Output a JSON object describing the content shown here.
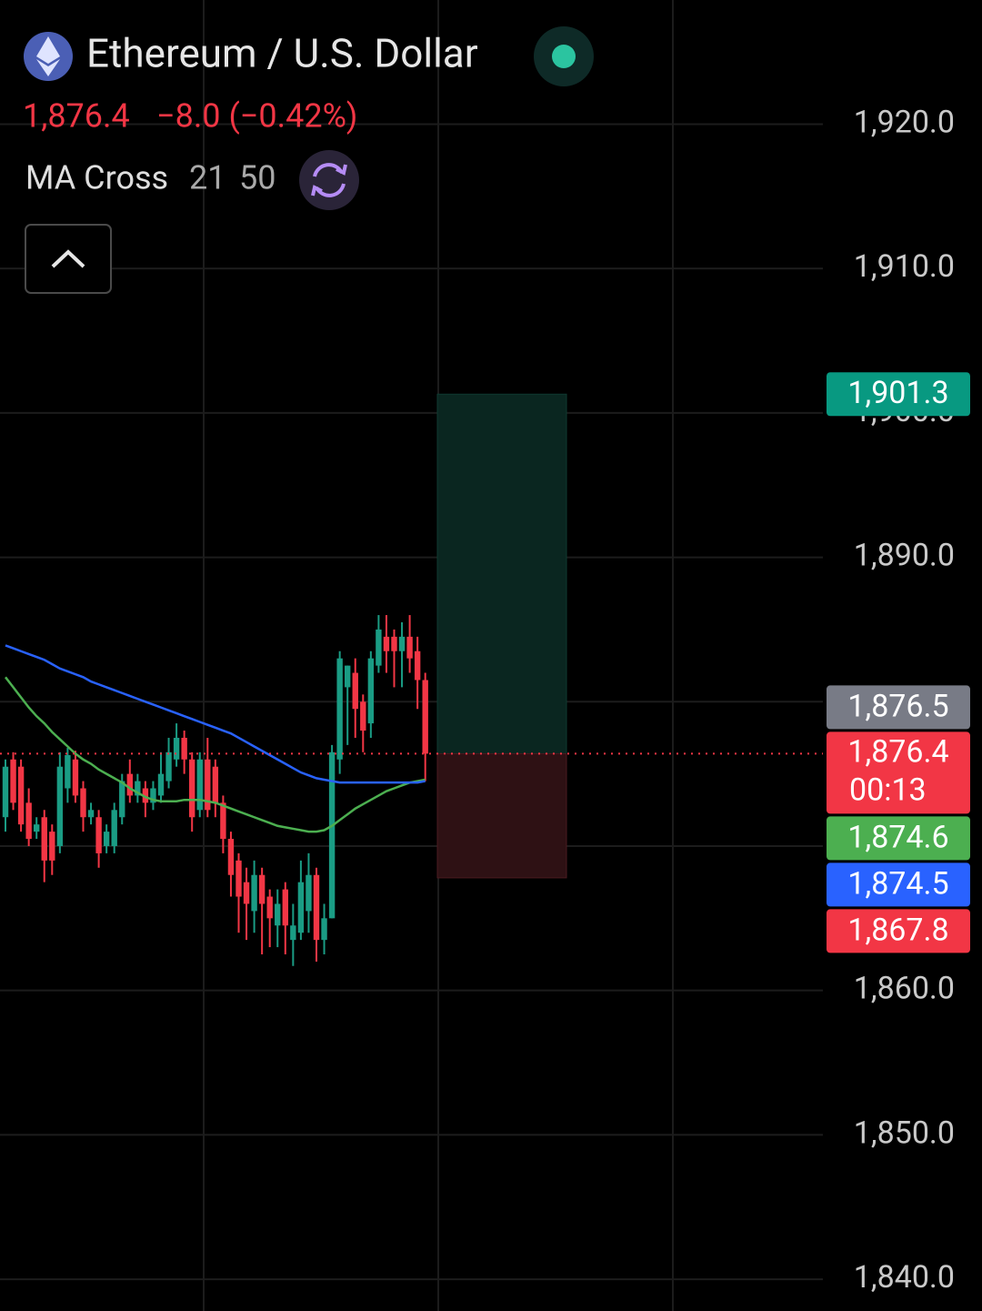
{
  "header": {
    "title": "Ethereum / U.S. Dollar",
    "price": "1,876.4",
    "change": "−8.0 (−0.42%)",
    "indicator": {
      "name": "MA Cross",
      "params": [
        "21",
        "50"
      ]
    }
  },
  "chart_data": {
    "type": "candlestick",
    "up_color": "#1a9c84",
    "down_color": "#f23645",
    "open": [
      1872,
      1876,
      1875.5,
      1873,
      1871,
      1872,
      1871,
      1870,
      1874,
      1876,
      1874,
      1872,
      1872,
      1870,
      1870,
      1872,
      1875,
      1873.5,
      1874,
      1873,
      1873.5,
      1874.5,
      1876,
      1877.5,
      1876,
      1872.5,
      1876,
      1875.5,
      1873,
      1870.5,
      1869,
      1867.5,
      1865.5,
      1868,
      1866.5,
      1864.5,
      1867,
      1863.5,
      1864,
      1865.5,
      1868,
      1863.5,
      1865,
      1876,
      1881,
      1882,
      1880,
      1878.5,
      1882.5,
      1884.5,
      1884.5,
      1883.5,
      1884.5,
      1883.5,
      1881.5
    ],
    "high": [
      1876,
      1876.5,
      1876,
      1874,
      1872,
      1872.5,
      1871.5,
      1876.5,
      1876.8,
      1876.6,
      1874.5,
      1873,
      1872.5,
      1871.5,
      1873,
      1875,
      1876,
      1875,
      1874.5,
      1874.5,
      1876.5,
      1877.5,
      1878.5,
      1878,
      1876.5,
      1876.5,
      1877.5,
      1876,
      1873.5,
      1871,
      1869.5,
      1868.5,
      1869,
      1868.5,
      1867,
      1867,
      1867.5,
      1866,
      1869,
      1869.5,
      1868.5,
      1866,
      1877,
      1883.5,
      1882.5,
      1883,
      1880.5,
      1883.5,
      1886,
      1886,
      1885,
      1885.5,
      1886,
      1884.5,
      1882
    ],
    "low": [
      1871,
      1872.5,
      1871,
      1870,
      1870.5,
      1867.5,
      1868,
      1869.5,
      1873,
      1873,
      1871,
      1871.5,
      1868.5,
      1869.5,
      1869.5,
      1871.5,
      1873,
      1873,
      1872,
      1872.5,
      1873,
      1874,
      1875.5,
      1875,
      1871,
      1872,
      1872,
      1872,
      1869.5,
      1866.5,
      1864,
      1863.5,
      1864,
      1862.5,
      1863,
      1863,
      1862.5,
      1861.7,
      1863.5,
      1864,
      1862,
      1862.5,
      1865,
      1875,
      1877,
      1877.5,
      1876.5,
      1877.5,
      1882,
      1882,
      1881,
      1881,
      1882,
      1879.5,
      1874.5
    ],
    "close": [
      1875.5,
      1873,
      1871.5,
      1870.5,
      1871.5,
      1869,
      1869,
      1875.5,
      1876.3,
      1873.5,
      1872,
      1872.5,
      1869.5,
      1871,
      1872.5,
      1874.5,
      1873.5,
      1874.5,
      1873,
      1874,
      1875,
      1876.5,
      1877.5,
      1876,
      1872,
      1876,
      1872.5,
      1873,
      1870.5,
      1868,
      1866.5,
      1866,
      1868,
      1866,
      1865,
      1866,
      1864.5,
      1864.5,
      1867.5,
      1868,
      1863.5,
      1865,
      1876.5,
      1883,
      1882.5,
      1879.5,
      1878,
      1883,
      1885,
      1883.5,
      1883.5,
      1884.5,
      1883,
      1881.5,
      1876.4
    ],
    "moving_averages": [
      {
        "period": "21",
        "color": "#4caf50",
        "values": [
          1881.7,
          1881.0,
          1880.3,
          1879.6,
          1879.0,
          1878.5,
          1877.9,
          1877.4,
          1876.9,
          1876.4,
          1876.0,
          1875.7,
          1875.3,
          1875.0,
          1874.7,
          1874.4,
          1874.0,
          1873.7,
          1873.4,
          1873.2,
          1873.1,
          1873.1,
          1873.1,
          1873.2,
          1873.2,
          1873.2,
          1873.1,
          1873.0,
          1872.8,
          1872.6,
          1872.4,
          1872.2,
          1872.0,
          1871.8,
          1871.6,
          1871.4,
          1871.3,
          1871.2,
          1871.1,
          1871.0,
          1871.0,
          1871.1,
          1871.4,
          1871.8,
          1872.2,
          1872.6,
          1872.9,
          1873.2,
          1873.5,
          1873.8,
          1874.0,
          1874.2,
          1874.4,
          1874.5,
          1874.6
        ]
      },
      {
        "period": "50",
        "color": "#2962ff",
        "values": [
          1883.9,
          1883.7,
          1883.5,
          1883.3,
          1883.1,
          1882.9,
          1882.6,
          1882.3,
          1882.1,
          1881.9,
          1881.7,
          1881.4,
          1881.2,
          1881.0,
          1880.8,
          1880.6,
          1880.4,
          1880.2,
          1880.0,
          1879.8,
          1879.6,
          1879.4,
          1879.2,
          1879.0,
          1878.8,
          1878.6,
          1878.4,
          1878.2,
          1878.0,
          1877.8,
          1877.5,
          1877.2,
          1876.9,
          1876.6,
          1876.3,
          1876.0,
          1875.7,
          1875.4,
          1875.1,
          1874.9,
          1874.7,
          1874.6,
          1874.5,
          1874.4,
          1874.4,
          1874.4,
          1874.4,
          1874.4,
          1874.4,
          1874.4,
          1874.4,
          1874.4,
          1874.4,
          1874.4,
          1874.5
        ]
      }
    ],
    "position": {
      "target": 1901.3,
      "entry": 1876.4,
      "stop": 1867.8
    },
    "ylim": [
      1837.8,
      1928.6
    ],
    "yticks": [
      {
        "value": 1840,
        "label": "1,840.0"
      },
      {
        "value": 1850,
        "label": "1,850.0"
      },
      {
        "value": 1860,
        "label": "1,860.0"
      },
      {
        "value": 1870,
        "label": "1,870.0"
      },
      {
        "value": 1880,
        "label": "1,880.0"
      },
      {
        "value": 1890,
        "label": "1,890.0"
      },
      {
        "value": 1900,
        "label": "1,900.0"
      },
      {
        "value": 1910,
        "label": "1,910.0"
      },
      {
        "value": 1920,
        "label": "1,920.0"
      }
    ],
    "grid": true,
    "last_price": {
      "value": 1876.4,
      "label": "1,876.4",
      "countdown": "00:13",
      "color": "#f23645"
    },
    "price_labels": [
      {
        "value": 1901.3,
        "label": "1,901.3",
        "color": "#089981"
      },
      {
        "value": 1876.5,
        "label": "1,876.5",
        "color": "#787b86"
      },
      {
        "value": 1874.6,
        "label": "1,874.6",
        "color": "#4caf50"
      },
      {
        "value": 1874.5,
        "label": "1,874.5",
        "color": "#2962ff"
      },
      {
        "value": 1867.8,
        "label": "1,867.8",
        "color": "#f23645"
      }
    ]
  }
}
